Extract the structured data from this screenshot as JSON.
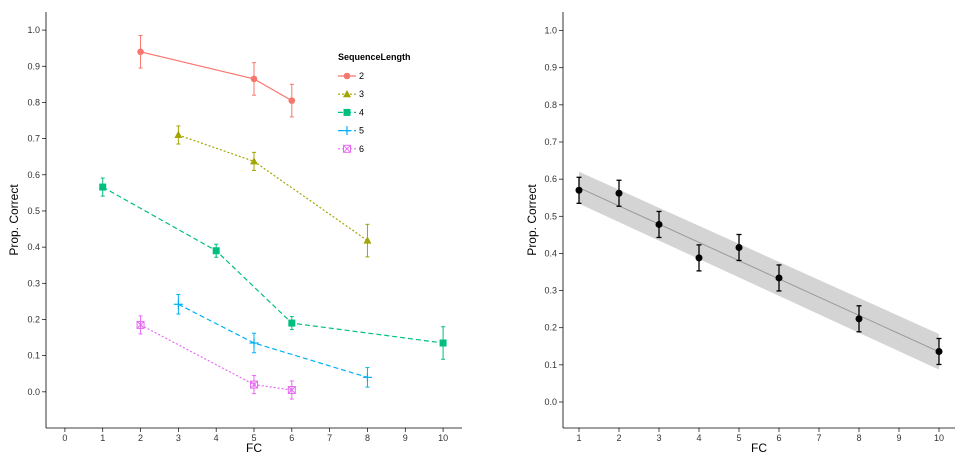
{
  "chart_data": [
    {
      "type": "line",
      "xlabel": "FC",
      "ylabel": "Prop. Correct",
      "xlim": [
        -0.5,
        10.5
      ],
      "ylim": [
        -0.1,
        1.05
      ],
      "xticks": [
        0,
        1,
        2,
        3,
        4,
        5,
        6,
        7,
        8,
        9,
        10
      ],
      "yticks": [
        0.0,
        0.1,
        0.2,
        0.3,
        0.4,
        0.5,
        0.6,
        0.7,
        0.8,
        0.9,
        1.0
      ],
      "ytick_labels": [
        "0.0",
        "0.1",
        "0.2",
        "0.3",
        "0.4",
        "0.5",
        "0.6",
        "0.7",
        "0.8",
        "0.9",
        "1.0"
      ],
      "grid": false,
      "legend": {
        "title": "SequenceLength",
        "placement": "top-right",
        "entries": [
          "2",
          "3",
          "4",
          "5",
          "6"
        ]
      },
      "series": [
        {
          "name": "2",
          "color": "#F8766D",
          "marker": "circle",
          "dash": "solid",
          "x": [
            2,
            5,
            6
          ],
          "y": [
            0.94,
            0.865,
            0.805
          ],
          "err": [
            0.045,
            0.045,
            0.045
          ]
        },
        {
          "name": "3",
          "color": "#A3A500",
          "marker": "triangle",
          "dash": "dotted",
          "x": [
            3,
            5,
            8
          ],
          "y": [
            0.71,
            0.637,
            0.418
          ],
          "err": [
            0.025,
            0.025,
            0.045
          ]
        },
        {
          "name": "4",
          "color": "#00BF7D",
          "marker": "square",
          "dash": "dashed",
          "x": [
            1,
            4,
            6,
            10
          ],
          "y": [
            0.566,
            0.39,
            0.19,
            0.135
          ],
          "err": [
            0.025,
            0.018,
            0.018,
            0.045
          ]
        },
        {
          "name": "5",
          "color": "#00B0F6",
          "marker": "plus",
          "dash": "dashed",
          "x": [
            3,
            5,
            8
          ],
          "y": [
            0.242,
            0.135,
            0.04
          ],
          "err": [
            0.027,
            0.027,
            0.027
          ]
        },
        {
          "name": "6",
          "color": "#E76BF3",
          "marker": "boxx",
          "dash": "dotted",
          "x": [
            2,
            5,
            6
          ],
          "y": [
            0.185,
            0.02,
            0.005
          ],
          "err": [
            0.025,
            0.025,
            0.025
          ]
        }
      ]
    },
    {
      "type": "scatter",
      "xlabel": "FC",
      "ylabel": "Prop. Correct",
      "xlim": [
        0.6,
        10.4
      ],
      "ylim": [
        -0.07,
        1.05
      ],
      "xticks": [
        1,
        2,
        3,
        4,
        5,
        6,
        7,
        8,
        9,
        10
      ],
      "yticks": [
        0.0,
        0.1,
        0.2,
        0.3,
        0.4,
        0.5,
        0.6,
        0.7,
        0.8,
        0.9,
        1.0
      ],
      "ytick_labels": [
        "0.0",
        "0.1",
        "0.2",
        "0.3",
        "0.4",
        "0.5",
        "0.6",
        "0.7",
        "0.8",
        "0.9",
        "1.0"
      ],
      "grid": false,
      "point_color": "#000000",
      "fit_color": "#999999",
      "band_color": "#cccccc",
      "points": {
        "x": [
          1,
          2,
          3,
          4,
          5,
          6,
          8,
          10
        ],
        "y": [
          0.57,
          0.562,
          0.478,
          0.388,
          0.416,
          0.334,
          0.224,
          0.136
        ],
        "err": [
          0.035,
          0.035,
          0.035,
          0.035,
          0.035,
          0.035,
          0.035,
          0.035
        ]
      },
      "fit": {
        "x": [
          1,
          10
        ],
        "y": [
          0.577,
          0.135
        ],
        "band_upper": [
          0.62,
          0.183
        ],
        "band_lower": [
          0.534,
          0.087
        ]
      }
    }
  ]
}
